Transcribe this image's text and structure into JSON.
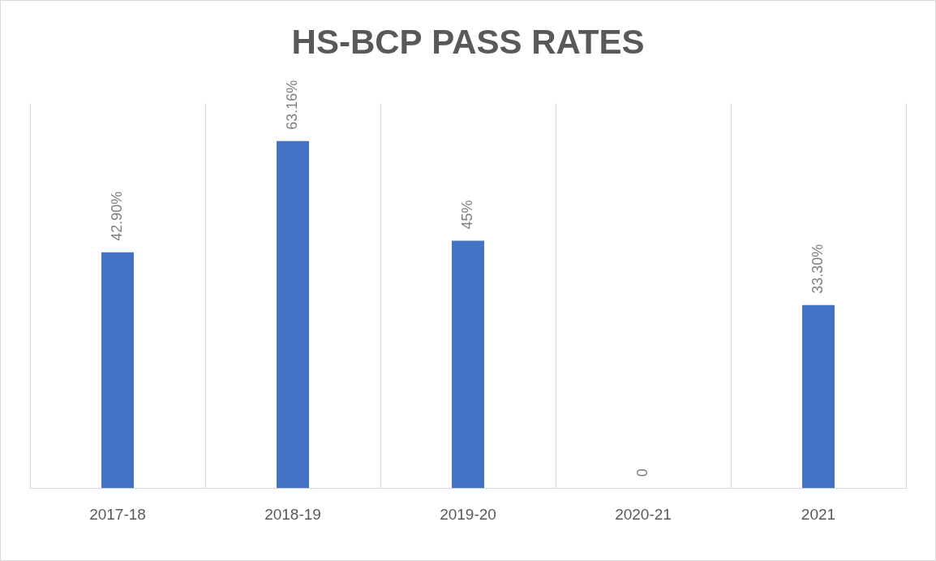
{
  "chart_data": {
    "type": "bar",
    "title": "HS-BCP PASS RATES",
    "categories": [
      "2017-18",
      "2018-19",
      "2019-20",
      "2020-21",
      "2021"
    ],
    "values": [
      42.9,
      63.16,
      45,
      0,
      33.3
    ],
    "value_labels": [
      "42.90%",
      "63.16%",
      "45%",
      "0",
      "33.30%"
    ],
    "color": "#4472c4",
    "ylim": [
      0,
      70
    ],
    "grid": true,
    "data_labels": true,
    "tick_labels": "x"
  }
}
